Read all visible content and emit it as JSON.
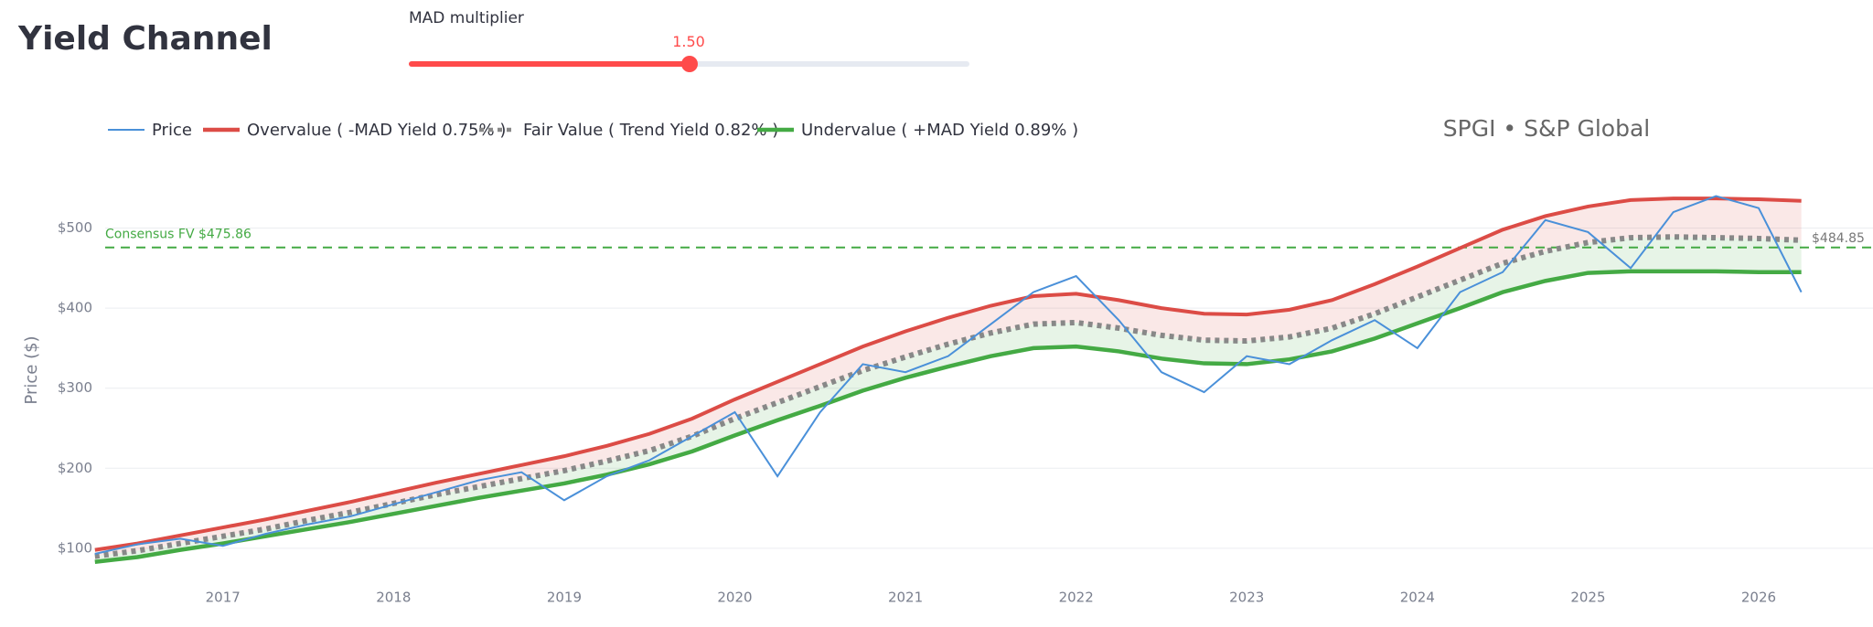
{
  "header": {
    "title": "Yield Channel"
  },
  "slider": {
    "label": "MAD multiplier",
    "value_text": "1.50"
  },
  "chart_data": {
    "type": "line",
    "title": "SPGI • S&P Global",
    "y_label": "Price ($)",
    "x": [
      2016.25,
      2016.5,
      2016.75,
      2017,
      2017.25,
      2017.5,
      2017.75,
      2018,
      2018.25,
      2018.5,
      2018.75,
      2019,
      2019.25,
      2019.5,
      2019.75,
      2020,
      2020.25,
      2020.5,
      2020.75,
      2021,
      2021.25,
      2021.5,
      2021.75,
      2022,
      2022.25,
      2022.5,
      2022.75,
      2023,
      2023.25,
      2023.5,
      2023.75,
      2024,
      2024.25,
      2024.5,
      2024.75,
      2025,
      2025.25,
      2025.5,
      2025.75,
      2026,
      2026.25
    ],
    "series": [
      {
        "name": "Price",
        "color": "#4a90d9",
        "dash": "solid",
        "values": [
          93,
          105,
          112,
          103,
          118,
          130,
          140,
          155,
          170,
          185,
          195,
          160,
          190,
          210,
          240,
          270,
          190,
          270,
          330,
          320,
          340,
          380,
          420,
          440,
          385,
          320,
          295,
          340,
          330,
          360,
          385,
          350,
          420,
          445,
          510,
          495,
          450,
          520,
          540,
          525,
          420
        ]
      },
      {
        "name": "Overvalue ( -MAD Yield 0.75% )",
        "color": "#dc4c46",
        "dash": "solid",
        "values": [
          98,
          106,
          116,
          126,
          136,
          147,
          158,
          170,
          182,
          193,
          204,
          215,
          228,
          243,
          262,
          286,
          308,
          330,
          352,
          371,
          388,
          403,
          415,
          418,
          410,
          400,
          393,
          392,
          398,
          410,
          430,
          452,
          475,
          498,
          515,
          527,
          535,
          537,
          537,
          536,
          534
        ]
      },
      {
        "name": "Fair Value ( Trend Yield 0.82% )",
        "color": "#888888",
        "dash": "dot",
        "values": [
          90,
          97,
          106,
          115,
          124,
          135,
          145,
          156,
          167,
          177,
          187,
          197,
          209,
          222,
          240,
          262,
          282,
          302,
          322,
          339,
          355,
          369,
          380,
          382,
          375,
          366,
          360,
          359,
          364,
          375,
          393,
          414,
          435,
          456,
          471,
          482,
          488,
          489,
          488,
          487,
          484.85
        ]
      },
      {
        "name": "Undervalue ( +MAD Yield 0.89% )",
        "color": "#44aa44",
        "dash": "solid",
        "values": [
          83,
          89,
          98,
          106,
          115,
          124,
          133,
          143,
          153,
          163,
          172,
          181,
          192,
          205,
          221,
          241,
          260,
          278,
          297,
          313,
          327,
          340,
          350,
          352,
          346,
          337,
          331,
          330,
          336,
          346,
          362,
          381,
          400,
          420,
          434,
          444,
          446,
          446,
          446,
          445,
          445
        ]
      }
    ],
    "band_fills": {
      "upper": "#dc4c46",
      "lower": "#44aa44"
    },
    "consensus": {
      "label": "Consensus FV $475.86",
      "value": 475.86,
      "color": "#44aa44"
    },
    "last_label": {
      "text": "$484.85",
      "value": 484.85
    },
    "xlim": [
      2016.31,
      2026.67
    ],
    "xticks": [
      2017,
      2018,
      2019,
      2020,
      2021,
      2022,
      2023,
      2024,
      2025,
      2026
    ],
    "ylim": [
      69,
      576
    ],
    "yticks": [
      {
        "value": 100,
        "label": "$100"
      },
      {
        "value": 200,
        "label": "$200"
      },
      {
        "value": 300,
        "label": "$300"
      },
      {
        "value": 400,
        "label": "$400"
      },
      {
        "value": 500,
        "label": "$500"
      }
    ],
    "grid": true
  }
}
